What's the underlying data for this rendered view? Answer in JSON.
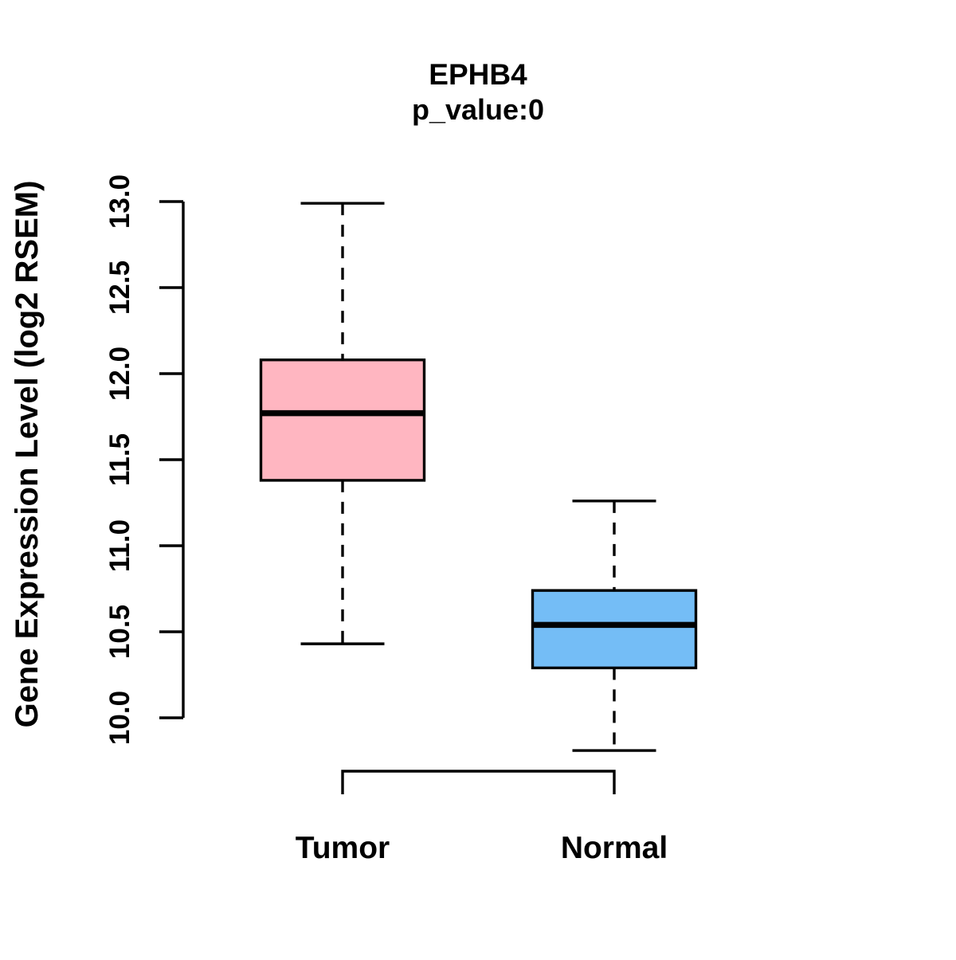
{
  "chart_data": {
    "type": "boxplot",
    "title": "EPHB4",
    "subtitle": "p_value:0",
    "ylabel": "Gene Expression Level (log2 RSEM)",
    "xlabel": "",
    "categories": [
      "Tumor",
      "Normal"
    ],
    "groups": [
      {
        "name": "Tumor",
        "color": "#FFB6C1",
        "whisker_low": 10.43,
        "q1": 11.38,
        "median": 11.77,
        "q3": 12.08,
        "whisker_high": 12.99,
        "outliers": []
      },
      {
        "name": "Normal",
        "color": "#74BDF6",
        "whisker_low": 9.81,
        "q1": 10.29,
        "median": 10.54,
        "q3": 10.74,
        "whisker_high": 11.26,
        "outliers": []
      }
    ],
    "y_axis": {
      "ticks": [
        "10.0",
        "10.5",
        "11.0",
        "11.5",
        "12.0",
        "12.5",
        "13.0"
      ],
      "tick_values": [
        10.0,
        10.5,
        11.0,
        11.5,
        12.0,
        12.5,
        13.0
      ],
      "range": [
        10.0,
        13.0
      ],
      "tick_label_rotation_deg": 90
    },
    "grid": false,
    "legend": null,
    "annotations": {
      "comparison_bracket": {
        "from": "Tumor",
        "to": "Normal",
        "position": "below-plot"
      }
    },
    "style": {
      "box_border_color": "#000000",
      "median_color": "#000000",
      "whisker_line_style": "dashed",
      "text_color": "#000000",
      "background_color": "#FFFFFF"
    }
  }
}
